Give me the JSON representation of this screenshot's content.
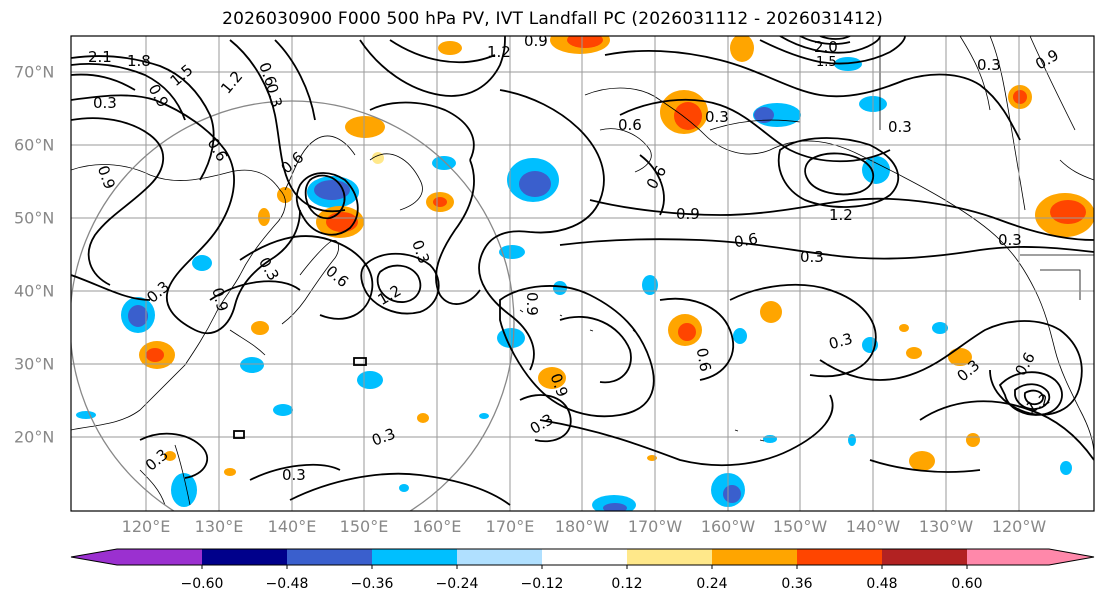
{
  "title": "2026030900 F000 500 hPa PV, IVT Landfall PC (2026031112 - 2026031412)",
  "map": {
    "lat_labels": [
      "70°N",
      "60°N",
      "50°N",
      "40°N",
      "30°N",
      "20°N"
    ],
    "lon_labels": [
      "120°E",
      "130°E",
      "140°E",
      "150°E",
      "160°E",
      "170°E",
      "180°W",
      "170°W",
      "160°W",
      "150°W",
      "140°W",
      "130°W",
      "120°W"
    ],
    "contour_labels": [
      "2.1",
      "1.8",
      "1.5",
      "1.2",
      "0.9",
      "0.6",
      "0.3",
      "0.9",
      "0.6",
      "0.3",
      "1.2",
      "0.9",
      "0.6",
      "0.3",
      "1.2",
      "0.9",
      "0.6",
      "0.3",
      "0.3",
      "0.3",
      "0.3",
      "0.9",
      "0.6",
      "1.2",
      "0.6",
      "0.3",
      "0.3",
      "0.6",
      "0.9",
      "0.3",
      "0.3",
      "0.9",
      "0.3",
      "0.3",
      "0.6",
      "0.3",
      "2.0",
      "1.5",
      "0.9",
      "0.3",
      "0.3",
      "0.6",
      "1.2"
    ]
  },
  "colorbar": {
    "ticks": [
      "−0.60",
      "−0.48",
      "−0.36",
      "−0.24",
      "−0.12",
      "0.12",
      "0.24",
      "0.36",
      "0.48",
      "0.60"
    ],
    "colors": [
      "#9b30d0",
      "#00008b",
      "#3a5fcd",
      "#00bfff",
      "#b0e0ff",
      "#ffffff",
      "#ffe88a",
      "#ffa500",
      "#ff4500",
      "#b22222",
      "#ff88aa"
    ]
  },
  "colors": {
    "land_outline": "#000000",
    "grid": "#9a9a9a",
    "axis_label": "#888888",
    "circle": "#888888"
  }
}
